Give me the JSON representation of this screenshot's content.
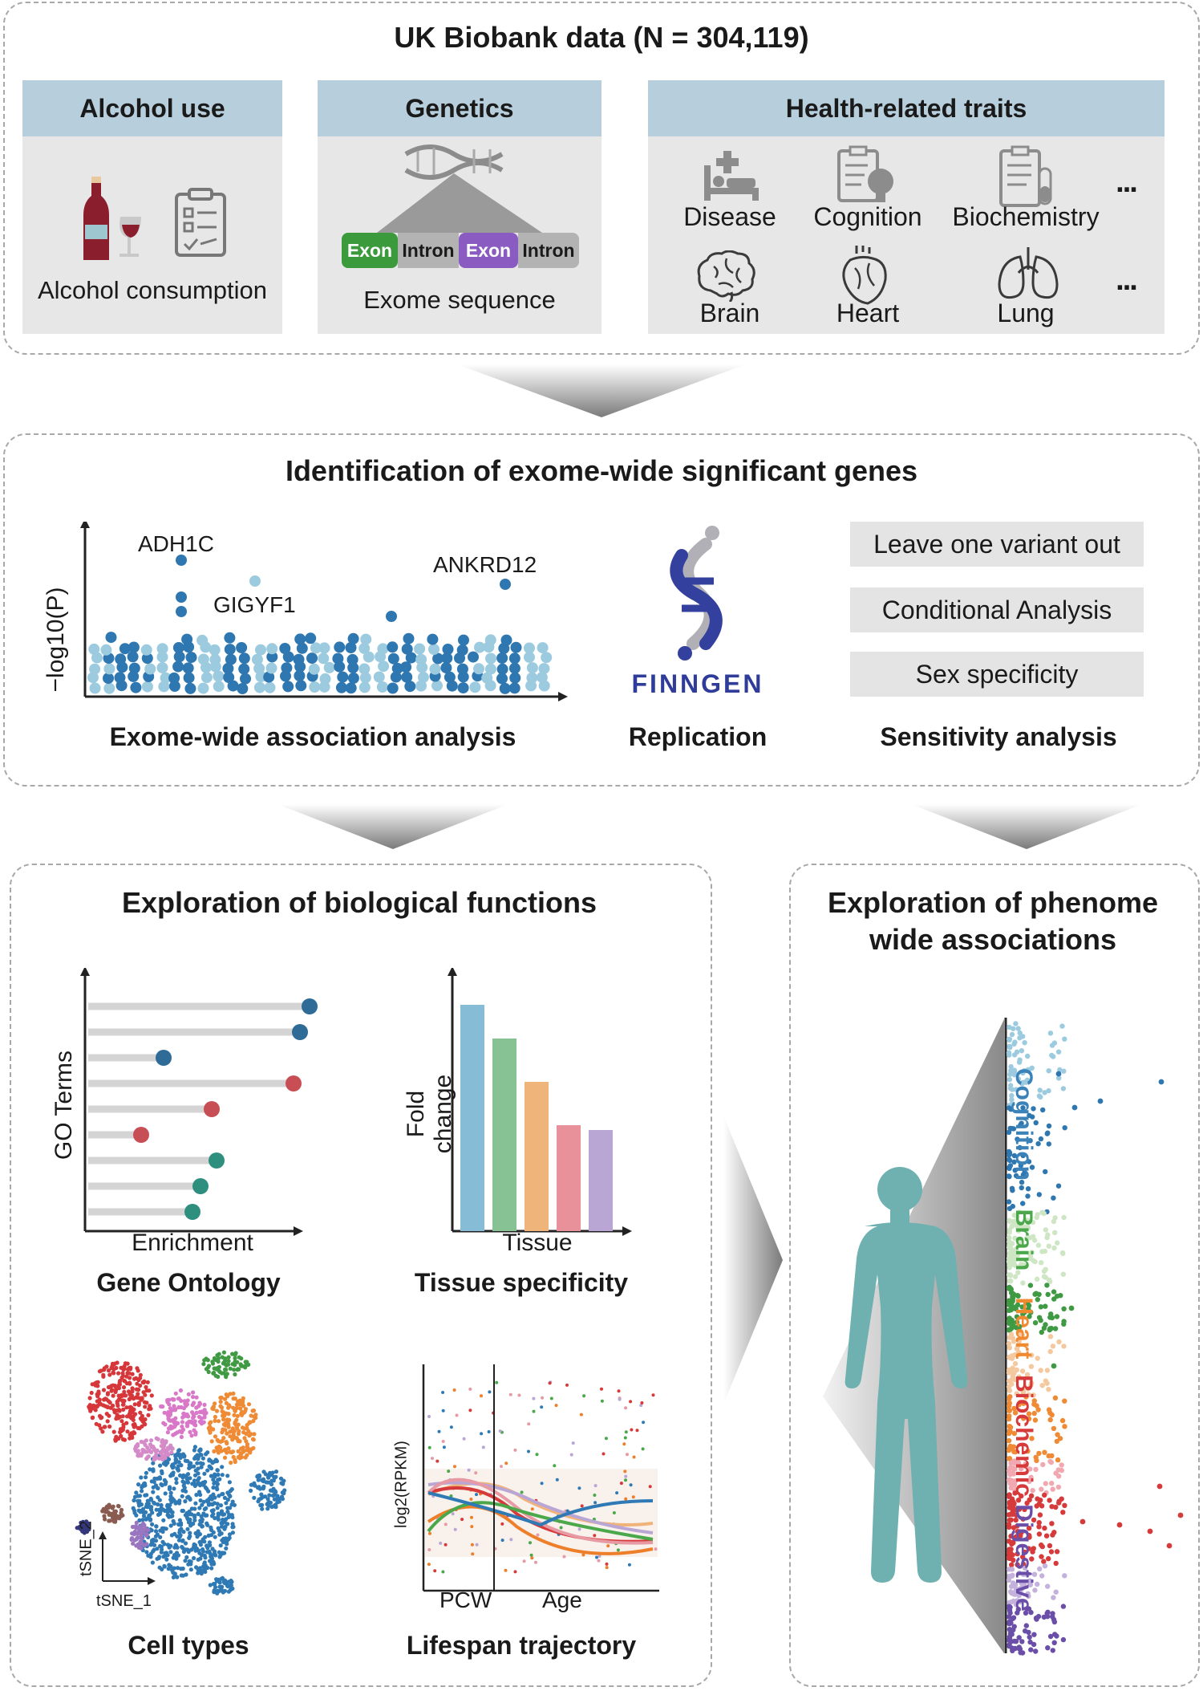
{
  "top": {
    "title": "UK Biobank data (N = 304,119)",
    "alcohol": {
      "header": "Alcohol use",
      "caption": "Alcohol consumption"
    },
    "genetics": {
      "header": "Genetics",
      "exon1": "Exon",
      "intron1": "Intron",
      "exon2": "Exon",
      "intron2": "Intron",
      "caption": "Exome sequence"
    },
    "traits": {
      "header": "Health-related traits",
      "items": [
        "Disease",
        "Cognition",
        "Biochemistry",
        "Brain",
        "Heart",
        "Lung"
      ],
      "more": "..."
    }
  },
  "mid": {
    "title": "Identification of exome-wide significant genes",
    "manhattan": {
      "ylabel": "−log10(P)",
      "genes": [
        "ADH1C",
        "GIGYF1",
        "ANKRD12"
      ],
      "caption": "Exome-wide association analysis"
    },
    "replication": {
      "logo": "FINNGEN",
      "caption": "Replication"
    },
    "sensitivity": {
      "items": [
        "Leave one variant out",
        "Conditional Analysis",
        "Sex specificity"
      ],
      "caption": "Sensitivity analysis"
    }
  },
  "bio": {
    "title": "Exploration of biological functions",
    "go": {
      "ylabel": "GO Terms",
      "xlabel": "Enrichment",
      "caption": "Gene Ontology"
    },
    "tissue": {
      "ylabel": "Fold change",
      "xlabel": "Tissue",
      "caption": "Tissue specificity"
    },
    "cells": {
      "x": "tSNE_1",
      "y": "tSNE_2",
      "caption": "Cell types"
    },
    "lifespan": {
      "ylabel": "log2(RPKM)",
      "x1": "PCW",
      "x2": "Age",
      "caption": "Lifespan trajectory"
    }
  },
  "phenome": {
    "title_line1": "Exploration of phenome",
    "title_line2": "wide associations",
    "categories": [
      {
        "name": "Cognition",
        "color": "#3b82b8"
      },
      {
        "name": "Brain",
        "color": "#4aa84a"
      },
      {
        "name": "Heart",
        "color": "#f08a30"
      },
      {
        "name": "Biochemic",
        "color": "#d63a3a"
      },
      {
        "name": "Digestive",
        "color": "#6a4ea8"
      }
    ]
  },
  "colors": {
    "header_blue": "#b7cfdd",
    "panel_gray": "#e7e7e7",
    "exon_green": "#3a9a3c",
    "exon_purple": "#8a5bc0",
    "intron_gray": "#b3b3b3",
    "finngen_blue": "#2f3c9a"
  }
}
